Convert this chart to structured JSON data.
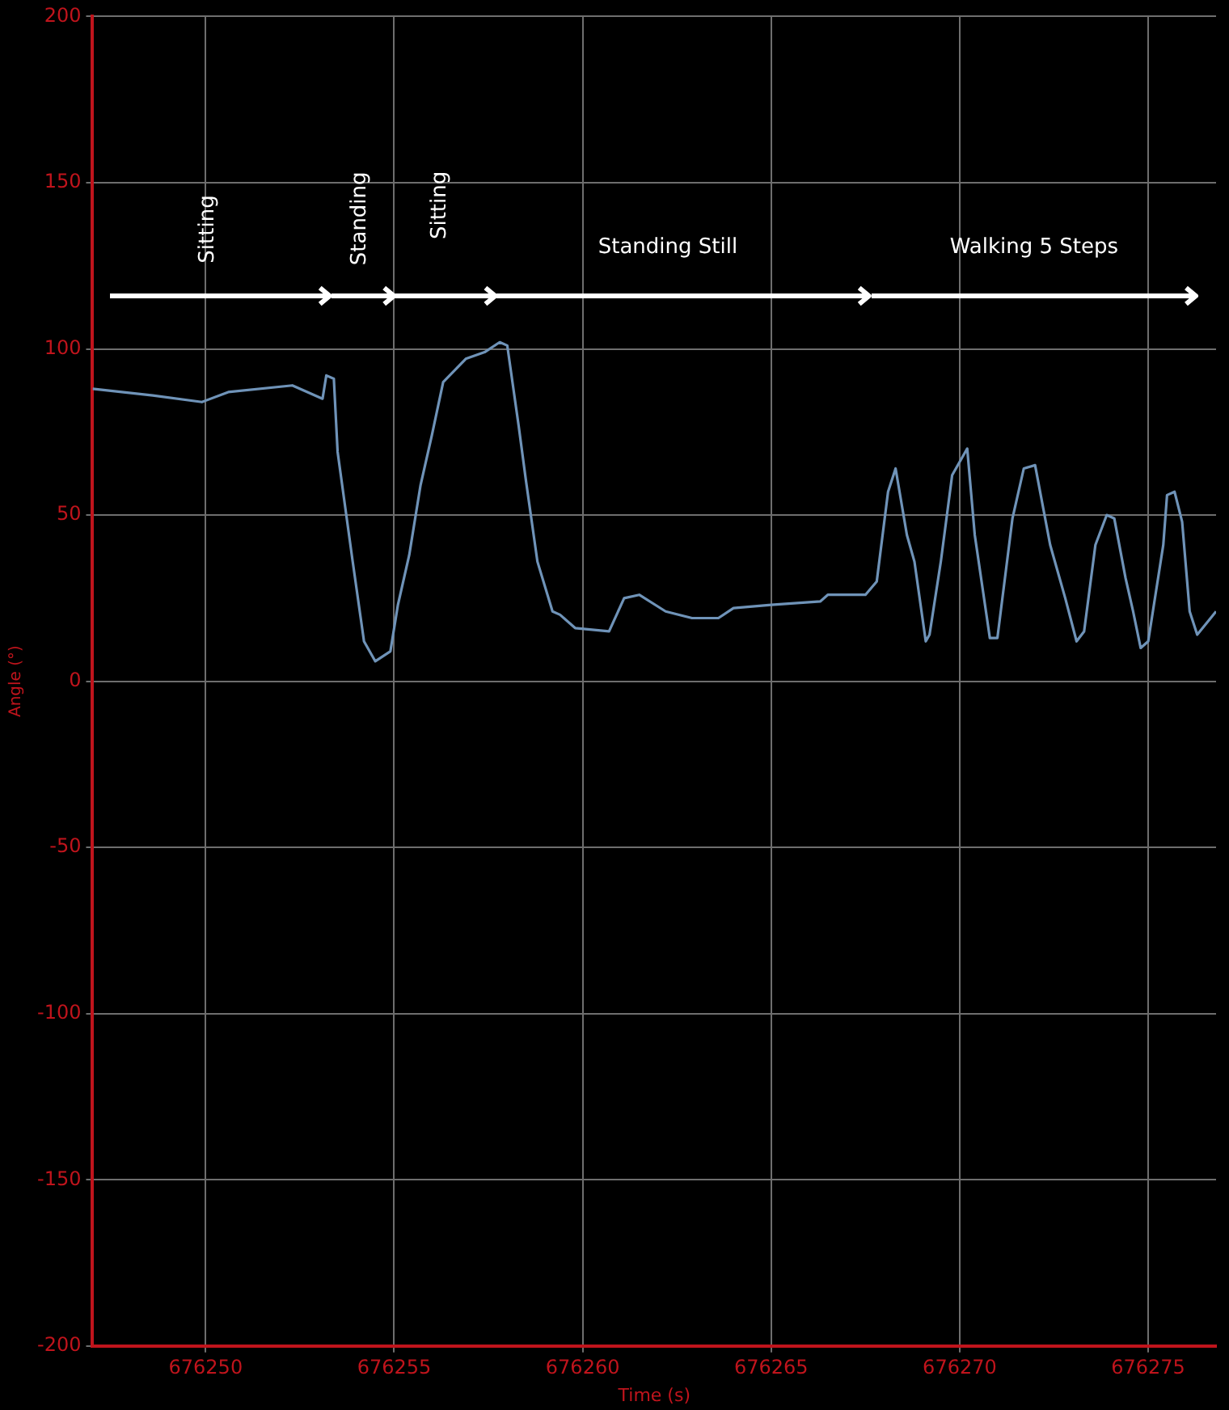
{
  "chart_data": {
    "type": "line",
    "xlabel": "Time (s)",
    "ylabel": "Angle (°)",
    "xlim": [
      676247,
      676276.8
    ],
    "xticks": [
      676250,
      676255,
      676260,
      676265,
      676270,
      676275
    ],
    "ylim": [
      -200,
      200
    ],
    "yticks": [
      -200,
      -150,
      -100,
      -50,
      0,
      50,
      100,
      150,
      200
    ],
    "grid": true,
    "legend": false,
    "marker": "none",
    "line_style": "solid",
    "annotations": [
      "Sitting",
      "Standing",
      "Sitting",
      "Standing Still",
      "Walking 5 Steps"
    ],
    "series": [
      {
        "color": "#6f93b8",
        "x": [
          676247.0,
          676248.6,
          676249.9,
          676250.6,
          676252.3,
          676252.7,
          676253.1,
          676253.2,
          676253.4,
          676253.5,
          676253.9,
          676254.2,
          676254.5,
          676254.9,
          676255.1,
          676255.4,
          676255.7,
          676256.0,
          676256.3,
          676256.9,
          676257.4,
          676257.8,
          676258.0,
          676258.3,
          676258.5,
          676258.8,
          676259.2,
          676259.4,
          676259.8,
          676260.7,
          676261.1,
          676261.5,
          676262.2,
          676262.9,
          676263.6,
          676264.0,
          676265.0,
          676266.3,
          676266.5,
          676267.5,
          676267.8,
          676268.1,
          676268.3,
          676268.6,
          676268.8,
          676269.1,
          676269.2,
          676269.5,
          676269.8,
          676270.2,
          676270.4,
          676270.8,
          676271.0,
          676271.4,
          676271.7,
          676272.0,
          676272.4,
          676272.8,
          676273.1,
          676273.3,
          676273.6,
          676273.9,
          676274.1,
          676274.4,
          676274.6,
          676274.8,
          676275.0,
          676275.4,
          676275.5,
          676275.7,
          676275.9,
          676276.1,
          676276.3,
          676276.8
        ],
        "values": [
          88,
          86,
          84,
          87,
          89,
          87,
          85,
          92,
          91,
          69,
          36,
          12,
          6,
          9,
          23,
          38,
          59,
          74,
          90,
          97,
          99,
          102,
          101,
          77,
          60,
          36,
          21,
          20,
          16,
          15,
          25,
          26,
          21,
          19,
          19,
          22,
          23,
          24,
          26,
          26,
          30,
          57,
          64,
          44,
          36,
          12,
          14,
          36,
          62,
          70,
          44,
          13,
          13,
          49,
          64,
          65,
          41,
          25,
          12,
          15,
          41,
          50,
          49,
          31,
          21,
          10,
          12,
          41,
          56,
          57,
          48,
          21,
          14,
          21
        ]
      }
    ]
  }
}
